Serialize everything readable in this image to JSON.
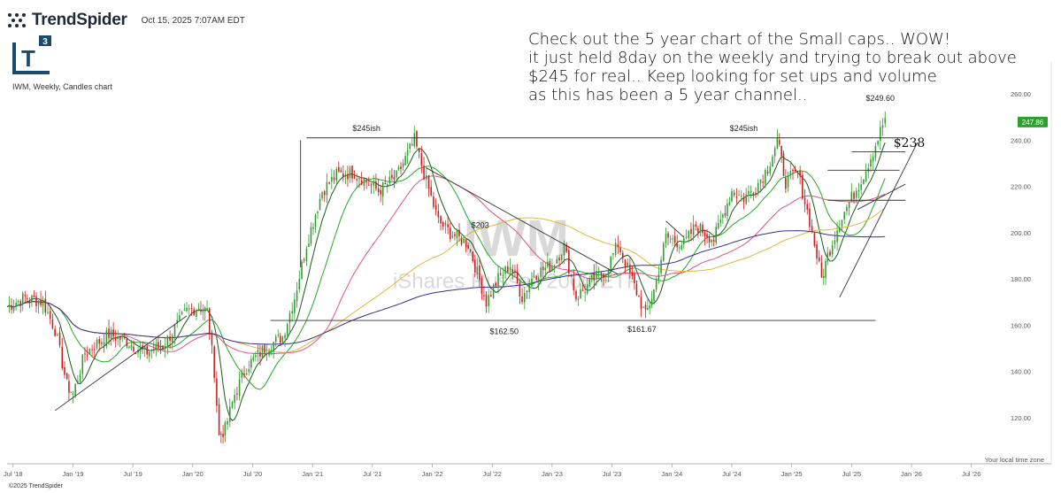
{
  "header": {
    "brand": "TrendSpider",
    "timestamp": "Oct 15, 2025 7:07AM EDT",
    "logo_text": "T",
    "logo_superscript": "3",
    "subtitle": "IWM, Weekly, Candles chart",
    "copyright": "©2025 TrendSpider",
    "local_time_zone": "Your local time zone"
  },
  "note_lines": [
    "Check out the 5 year chart of the Small caps.. WOW!",
    "it just held 8day on the weekly and trying to break out above",
    "$245 for real.. Keep looking for set ups and volume",
    "as this has been a 5 year channel.."
  ],
  "colors": {
    "up_candle": "#2e9e2e",
    "down_candle": "#c81e1e",
    "ma_8": "#1a5a1a",
    "ma_21": "#22aa22",
    "ma_50": "#e0528a",
    "ma_100": "#e0b93a",
    "ma_200": "#3a2f8c",
    "trendlines": "#333333",
    "last_price_tag": "#2e9e2e",
    "watermark": "#d9d9d9"
  },
  "chart_data": {
    "type": "candlestick",
    "ticker": "IWM",
    "timeframe": "Weekly",
    "watermark_symbol": "IWM",
    "watermark_name": "iShares Russell 2000 ETF",
    "ylim": [
      100,
      270
    ],
    "y_ticks": [
      120,
      140,
      160,
      180,
      200,
      220,
      240,
      260
    ],
    "x_ticks": [
      "Jul '18",
      "Jan '19",
      "Jul '19",
      "Jan '20",
      "Jul '20",
      "Jan '21",
      "Jul '21",
      "Jan '22",
      "Jul '22",
      "Jan '23",
      "Jul '23",
      "Jan '24",
      "Jul '24",
      "Jan '25",
      "Jul '25",
      "Jan '26",
      "Jul '26"
    ],
    "x_tick_years": [
      2018.5,
      2019.0,
      2019.5,
      2020.0,
      2020.5,
      2021.0,
      2021.5,
      2022.0,
      2022.5,
      2023.0,
      2023.5,
      2024.0,
      2024.5,
      2025.0,
      2025.5,
      2026.0,
      2026.5
    ],
    "xlim": [
      2018.45,
      2026.65
    ],
    "last_price": 247.86,
    "price_path": [
      [
        2018.45,
        168
      ],
      [
        2018.6,
        172
      ],
      [
        2018.75,
        170
      ],
      [
        2018.85,
        158
      ],
      [
        2018.95,
        134
      ],
      [
        2019.0,
        130
      ],
      [
        2019.1,
        148
      ],
      [
        2019.3,
        156
      ],
      [
        2019.45,
        153
      ],
      [
        2019.6,
        148
      ],
      [
        2019.75,
        151
      ],
      [
        2019.95,
        166
      ],
      [
        2020.05,
        168
      ],
      [
        2020.12,
        166
      ],
      [
        2020.18,
        140
      ],
      [
        2020.22,
        112
      ],
      [
        2020.27,
        115
      ],
      [
        2020.35,
        130
      ],
      [
        2020.45,
        142
      ],
      [
        2020.6,
        150
      ],
      [
        2020.75,
        155
      ],
      [
        2020.85,
        172
      ],
      [
        2020.95,
        195
      ],
      [
        2021.08,
        218
      ],
      [
        2021.2,
        225
      ],
      [
        2021.35,
        226
      ],
      [
        2021.45,
        222
      ],
      [
        2021.55,
        218
      ],
      [
        2021.7,
        224
      ],
      [
        2021.85,
        240
      ],
      [
        2021.95,
        222
      ],
      [
        2022.05,
        205
      ],
      [
        2022.15,
        200
      ],
      [
        2022.3,
        195
      ],
      [
        2022.45,
        170
      ],
      [
        2022.55,
        180
      ],
      [
        2022.65,
        186
      ],
      [
        2022.75,
        172
      ],
      [
        2022.85,
        182
      ],
      [
        2023.0,
        186
      ],
      [
        2023.1,
        194
      ],
      [
        2023.2,
        172
      ],
      [
        2023.35,
        180
      ],
      [
        2023.45,
        184
      ],
      [
        2023.55,
        195
      ],
      [
        2023.65,
        182
      ],
      [
        2023.78,
        164
      ],
      [
        2023.85,
        175
      ],
      [
        2023.95,
        198
      ],
      [
        2024.1,
        195
      ],
      [
        2024.2,
        203
      ],
      [
        2024.35,
        197
      ],
      [
        2024.5,
        218
      ],
      [
        2024.6,
        215
      ],
      [
        2024.7,
        220
      ],
      [
        2024.8,
        228
      ],
      [
        2024.88,
        240
      ],
      [
        2024.95,
        222
      ],
      [
        2025.05,
        226
      ],
      [
        2025.15,
        205
      ],
      [
        2025.25,
        180
      ],
      [
        2025.3,
        190
      ],
      [
        2025.4,
        205
      ],
      [
        2025.5,
        215
      ],
      [
        2025.6,
        225
      ],
      [
        2025.7,
        238
      ],
      [
        2025.78,
        249.6
      ]
    ],
    "moving_averages": [
      {
        "period": 8,
        "color_key": "ma_8"
      },
      {
        "period": 21,
        "color_key": "ma_21"
      },
      {
        "period": 50,
        "color_key": "ma_50"
      },
      {
        "period": 100,
        "color_key": "ma_100"
      },
      {
        "period": 200,
        "color_key": "ma_200"
      }
    ],
    "annotations": [
      {
        "text": "$245ish",
        "x": 2021.45,
        "y": 244
      },
      {
        "text": "$245ish",
        "x": 2024.6,
        "y": 244
      },
      {
        "text": "$249.60",
        "x": 2025.74,
        "y": 257
      },
      {
        "text": "$162.50",
        "x": 2022.6,
        "y": 156
      },
      {
        "text": "$161.67",
        "x": 2023.75,
        "y": 157
      },
      {
        "text": "$203",
        "x": 2022.4,
        "y": 202
      }
    ],
    "price_label": {
      "text": "$238",
      "x": 2025.85,
      "y": 237
    },
    "horizontal_levels": [
      {
        "price": 241,
        "x_start": 2020.95,
        "x_end": 2025.95
      },
      {
        "price": 162,
        "x_start": 2020.65,
        "x_end": 2025.7
      }
    ],
    "trend_lines": [
      [
        2018.85,
        123,
        2019.95,
        164
      ],
      [
        2020.9,
        185,
        2020.9,
        240
      ],
      [
        2021.95,
        228,
        2023.55,
        182
      ],
      [
        2023.95,
        205,
        2024.1,
        198
      ],
      [
        2025.4,
        172,
        2026.05,
        239
      ],
      [
        2025.55,
        210,
        2025.95,
        221
      ]
    ],
    "short_levels": [
      {
        "price": 235,
        "x_start": 2025.5,
        "x_end": 2025.95
      },
      {
        "price": 227,
        "x_start": 2025.3,
        "x_end": 2025.9
      },
      {
        "price": 214,
        "x_start": 2025.3,
        "x_end": 2025.95
      }
    ]
  }
}
